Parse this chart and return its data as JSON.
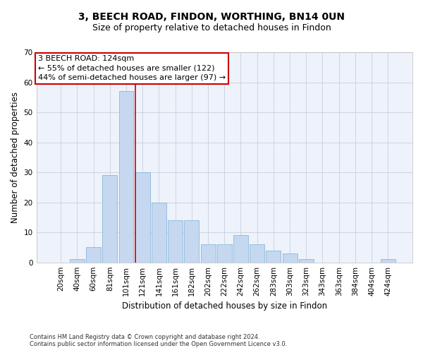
{
  "title": "3, BEECH ROAD, FINDON, WORTHING, BN14 0UN",
  "subtitle": "Size of property relative to detached houses in Findon",
  "xlabel": "Distribution of detached houses by size in Findon",
  "ylabel": "Number of detached properties",
  "categories": [
    "20sqm",
    "40sqm",
    "60sqm",
    "81sqm",
    "101sqm",
    "121sqm",
    "141sqm",
    "161sqm",
    "182sqm",
    "202sqm",
    "222sqm",
    "242sqm",
    "262sqm",
    "283sqm",
    "303sqm",
    "323sqm",
    "343sqm",
    "363sqm",
    "384sqm",
    "404sqm",
    "424sqm"
  ],
  "values": [
    0,
    1,
    5,
    29,
    57,
    30,
    20,
    14,
    14,
    6,
    6,
    9,
    6,
    4,
    3,
    1,
    0,
    0,
    0,
    0,
    1
  ],
  "bar_color": "#c5d8f0",
  "bar_edge_color": "#7aafd4",
  "highlight_line_index": 5,
  "highlight_line_color": "#cc0000",
  "ylim": [
    0,
    70
  ],
  "yticks": [
    0,
    10,
    20,
    30,
    40,
    50,
    60,
    70
  ],
  "annotation_line1": "3 BEECH ROAD: 124sqm",
  "annotation_line2": "← 55% of detached houses are smaller (122)",
  "annotation_line3": "44% of semi-detached houses are larger (97) →",
  "annotation_box_color": "#cc0000",
  "footer_line1": "Contains HM Land Registry data © Crown copyright and database right 2024.",
  "footer_line2": "Contains public sector information licensed under the Open Government Licence v3.0.",
  "background_color": "#eef2fb",
  "grid_color": "#c8cfe0",
  "title_fontsize": 10,
  "subtitle_fontsize": 9,
  "axis_label_fontsize": 8.5,
  "tick_fontsize": 7.5,
  "annotation_fontsize": 8,
  "footer_fontsize": 6
}
